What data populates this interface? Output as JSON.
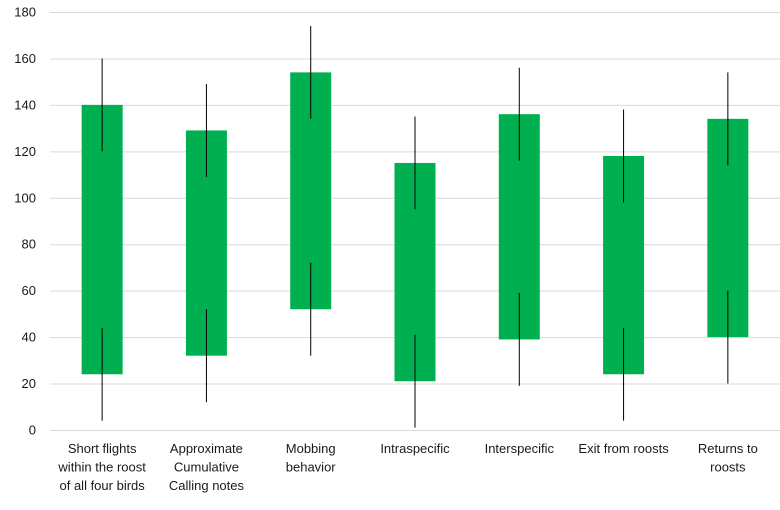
{
  "chart_data": {
    "type": "bar",
    "subtype": "floating-range-with-error-bars",
    "title": "",
    "xlabel": "",
    "ylabel": "",
    "ylim": [
      0,
      180
    ],
    "y_ticks": [
      0,
      20,
      40,
      60,
      80,
      100,
      120,
      140,
      160,
      180
    ],
    "grid": true,
    "legend": "none",
    "colors": {
      "bar": "#00b050",
      "error_bar": "#000000",
      "grid": "#d9d9d9"
    },
    "categories": [
      {
        "lines": [
          "Short flights",
          "within the roost",
          "of all four birds"
        ]
      },
      {
        "lines": [
          "Approximate",
          "Cumulative",
          "Calling notes"
        ]
      },
      {
        "lines": [
          "Mobbing",
          "behavior"
        ]
      },
      {
        "lines": [
          "Intraspecific"
        ]
      },
      {
        "lines": [
          "Interspecific"
        ]
      },
      {
        "lines": [
          "Exit from roosts"
        ]
      },
      {
        "lines": [
          "Returns to",
          "roosts"
        ]
      }
    ],
    "bars": [
      {
        "low": 24,
        "high": 140,
        "low_err": [
          4,
          44
        ],
        "high_err": [
          120,
          160
        ]
      },
      {
        "low": 32,
        "high": 129,
        "low_err": [
          12,
          52
        ],
        "high_err": [
          109,
          149
        ]
      },
      {
        "low": 52,
        "high": 154,
        "low_err": [
          32,
          72
        ],
        "high_err": [
          134,
          174
        ]
      },
      {
        "low": 21,
        "high": 115,
        "low_err": [
          1,
          41
        ],
        "high_err": [
          95,
          135
        ]
      },
      {
        "low": 39,
        "high": 136,
        "low_err": [
          19,
          59
        ],
        "high_err": [
          116,
          156
        ]
      },
      {
        "low": 24,
        "high": 118,
        "low_err": [
          4,
          44
        ],
        "high_err": [
          98,
          138
        ]
      },
      {
        "low": 40,
        "high": 134,
        "low_err": [
          20,
          60
        ],
        "high_err": [
          114,
          154
        ]
      }
    ]
  }
}
